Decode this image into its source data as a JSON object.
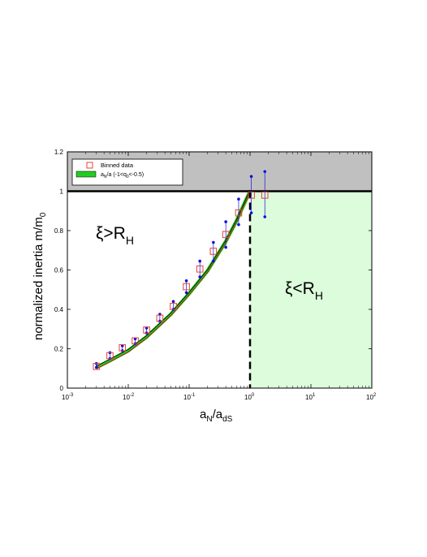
{
  "chart_data": {
    "type": "scatter",
    "xscale": "log",
    "xlim": [
      0.001,
      100
    ],
    "ylim": [
      0,
      1.2
    ],
    "xticks": [
      0.001,
      0.01,
      0.1,
      1,
      10,
      100
    ],
    "xtick_labels": [
      {
        "base": "10",
        "exp": "-3"
      },
      {
        "base": "10",
        "exp": "-2"
      },
      {
        "base": "10",
        "exp": "-1"
      },
      {
        "base": "10",
        "exp": "0"
      },
      {
        "base": "10",
        "exp": "1"
      },
      {
        "base": "10",
        "exp": "2"
      }
    ],
    "yticks": [
      0,
      0.2,
      0.4,
      0.6,
      0.8,
      1,
      1.2
    ],
    "ytick_labels": [
      "0",
      "0.2",
      "0.4",
      "0.6",
      "0.8",
      "1",
      "1.2"
    ],
    "xlabel": {
      "main": "a",
      "sub1": "N",
      "mid": "/a",
      "sub2": "dS"
    },
    "ylabel": {
      "main": "normalized inertia m/m",
      "sub": "0"
    },
    "region_labels": [
      {
        "text": "ξ>R",
        "sub": "H"
      },
      {
        "text": "ξ<R",
        "sub": "H"
      }
    ],
    "legend": {
      "placement": "top-left",
      "entries": [
        {
          "label": "Binned data"
        },
        {
          "label_parts": [
            "a",
            "N",
            "/a (-1<q",
            "0",
            "<-0.5)"
          ]
        }
      ]
    },
    "shaded_regions": [
      {
        "name": "gray-region",
        "x": [
          0.001,
          100
        ],
        "y": [
          1,
          1.2
        ],
        "color": "#c0c0c0"
      },
      {
        "name": "green-region",
        "x": [
          1,
          100
        ],
        "y": [
          0,
          1
        ],
        "color": "#dcfcdc"
      }
    ],
    "series": [
      {
        "name": "Binned data",
        "marker": "open-square",
        "color": "#e8403a",
        "x": [
          0.003,
          0.005,
          0.008,
          0.013,
          0.02,
          0.033,
          0.055,
          0.09,
          0.15,
          0.25,
          0.4,
          0.65,
          1.05,
          1.75
        ],
        "y": [
          0.11,
          0.165,
          0.205,
          0.24,
          0.295,
          0.355,
          0.415,
          0.515,
          0.605,
          0.695,
          0.78,
          0.89,
          0.98,
          0.98
        ],
        "yerr_low": [
          0.105,
          0.15,
          0.19,
          0.225,
          0.28,
          0.34,
          0.4,
          0.485,
          0.565,
          0.645,
          0.715,
          0.83,
          0.89,
          0.87
        ],
        "yerr_high": [
          0.125,
          0.18,
          0.215,
          0.25,
          0.305,
          0.375,
          0.44,
          0.545,
          0.645,
          0.74,
          0.845,
          0.96,
          1.075,
          1.1
        ],
        "errorbar_color": "#1010e0"
      },
      {
        "name": "a_N/a band",
        "type": "line",
        "color": "#22cc22",
        "edge_colors": [
          "#000000",
          "#cc0000"
        ],
        "x": [
          0.003,
          0.005,
          0.01,
          0.02,
          0.05,
          0.1,
          0.2,
          0.4,
          0.6,
          0.8,
          0.95,
          1.0
        ],
        "y": [
          0.105,
          0.14,
          0.19,
          0.26,
          0.375,
          0.48,
          0.595,
          0.745,
          0.85,
          0.935,
          0.985,
          1.0
        ]
      }
    ],
    "reference_lines": [
      {
        "name": "horizontal-line-y1",
        "orientation": "horizontal",
        "value": 1,
        "style": "solid"
      },
      {
        "name": "vertical-line-x1",
        "orientation": "vertical",
        "value": 1,
        "style": "dashed"
      }
    ]
  }
}
